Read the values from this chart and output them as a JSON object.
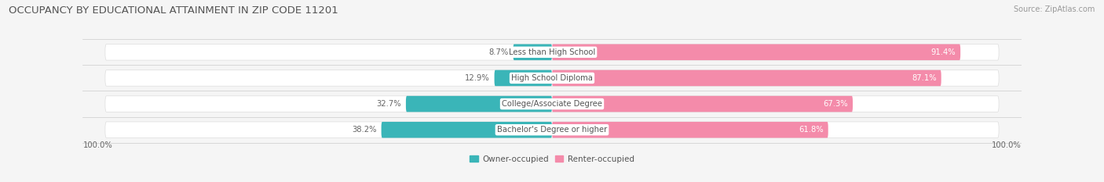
{
  "title": "OCCUPANCY BY EDUCATIONAL ATTAINMENT IN ZIP CODE 11201",
  "source": "Source: ZipAtlas.com",
  "categories": [
    "Less than High School",
    "High School Diploma",
    "College/Associate Degree",
    "Bachelor's Degree or higher"
  ],
  "owner_pct": [
    8.7,
    12.9,
    32.7,
    38.2
  ],
  "renter_pct": [
    91.4,
    87.1,
    67.3,
    61.8
  ],
  "owner_color": "#3ab5b8",
  "renter_color": "#f48baa",
  "bg_color": "#f5f5f5",
  "bar_bg_color": "#efefef",
  "bar_border_color": "#dddddd",
  "title_color": "#555555",
  "source_color": "#999999",
  "pct_label_color_left": "#666666",
  "pct_label_color_right": "#ffffff",
  "cat_label_color": "#555555",
  "title_fontsize": 9.5,
  "label_fontsize": 7.2,
  "source_fontsize": 7.0,
  "legend_fontsize": 7.5,
  "axis_label_left": "100.0%",
  "axis_label_right": "100.0%",
  "bar_height": 0.62,
  "xlim_left": -105,
  "xlim_right": 105,
  "legend_labels": [
    "Owner-occupied",
    "Renter-occupied"
  ]
}
